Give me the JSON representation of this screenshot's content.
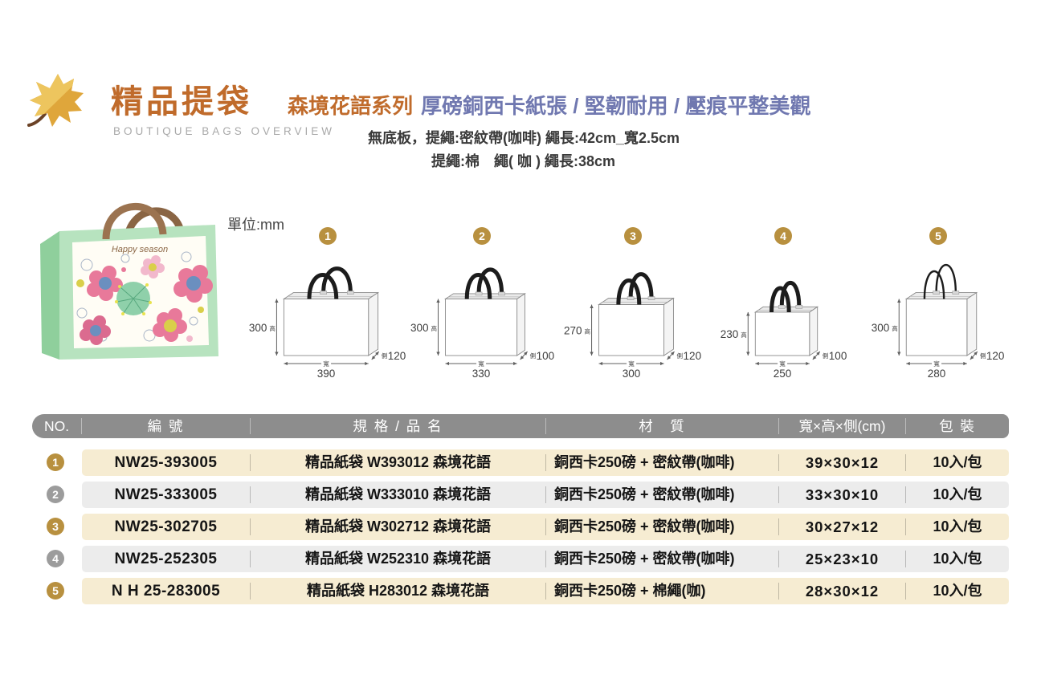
{
  "header": {
    "title": "精品提袋",
    "subtitle": "BOUTIQUE BAGS OVERVIEW",
    "series_name": "森境花語系列",
    "series_features": "厚磅銅西卡紙張 / 堅韌耐用 / 壓痕平整美觀",
    "desc_line1": "無底板，提繩:密紋帶(咖啡) 繩長:42cm_寬2.5cm",
    "desc_line2": "提繩:棉　繩( 咖 ) 繩長:38cm"
  },
  "unit_label": "單位:mm",
  "photo": {
    "brand_text": "Happy season"
  },
  "dim_labels": {
    "height": "高",
    "width": "寬",
    "side": "側"
  },
  "diagrams": [
    {
      "no": "1",
      "width_mm": 390,
      "height_mm": 300,
      "side_mm": 120,
      "handle": "ribbon"
    },
    {
      "no": "2",
      "width_mm": 330,
      "height_mm": 300,
      "side_mm": 100,
      "handle": "ribbon"
    },
    {
      "no": "3",
      "width_mm": 300,
      "height_mm": 270,
      "side_mm": 120,
      "handle": "ribbon"
    },
    {
      "no": "4",
      "width_mm": 250,
      "height_mm": 230,
      "side_mm": 100,
      "handle": "ribbon"
    },
    {
      "no": "5",
      "width_mm": 280,
      "height_mm": 300,
      "side_mm": 120,
      "handle": "rope"
    }
  ],
  "table": {
    "columns": [
      "NO.",
      "編 號",
      "規 格 / 品 名",
      "材　質",
      "寬×高×側(cm)",
      "包 裝"
    ],
    "rows": [
      {
        "no": "1",
        "code": "NW25-393005",
        "spec": "精品紙袋 W393012 森境花語",
        "material": "銅西卡250磅 + 密紋帶(咖啡)",
        "size": "39×30×12",
        "pack": "10入/包"
      },
      {
        "no": "2",
        "code": "NW25-333005",
        "spec": "精品紙袋 W333010 森境花語",
        "material": "銅西卡250磅 + 密紋帶(咖啡)",
        "size": "33×30×10",
        "pack": "10入/包"
      },
      {
        "no": "3",
        "code": "NW25-302705",
        "spec": "精品紙袋 W302712 森境花語",
        "material": "銅西卡250磅 + 密紋帶(咖啡)",
        "size": "30×27×12",
        "pack": "10入/包"
      },
      {
        "no": "4",
        "code": "NW25-252305",
        "spec": "精品紙袋 W252310 森境花語",
        "material": "銅西卡250磅 + 密紋帶(咖啡)",
        "size": "25×23×10",
        "pack": "10入/包"
      },
      {
        "no": "5",
        "code": "N H 25-283005",
        "spec": "精品紙袋  H283012 森境花語",
        "material": "銅西卡250磅 + 棉繩(咖)",
        "size": "28×30×12",
        "pack": "10入/包"
      }
    ]
  },
  "colors": {
    "brand_brown": "#c06b2b",
    "feature_blue": "#7078b0",
    "accent_gold": "#b8903f",
    "header_gray": "#8d8d8d",
    "row_cream": "#f6ecd2",
    "row_gray": "#ececec"
  }
}
